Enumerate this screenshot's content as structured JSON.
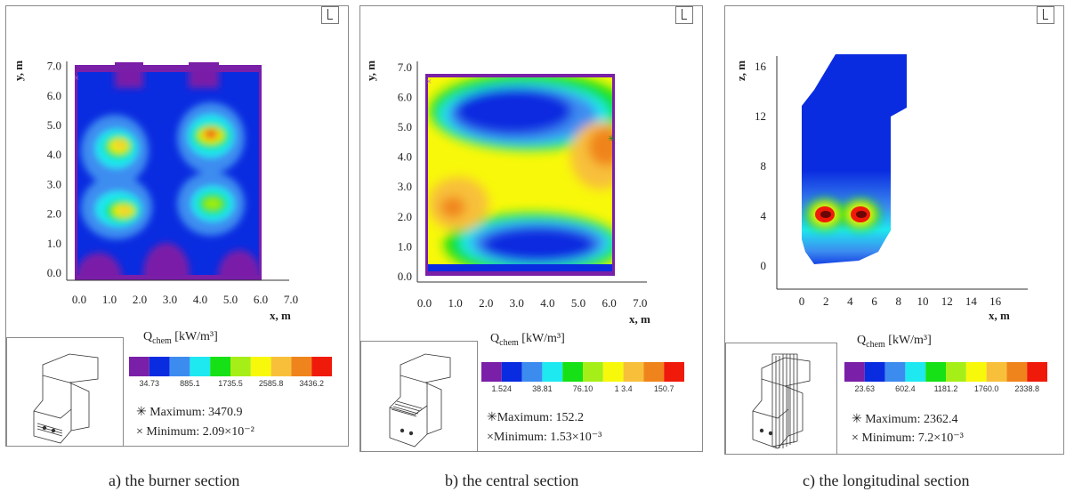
{
  "colors": [
    "#7a1fa8",
    "#0a2ce0",
    "#3c8cf0",
    "#1ee8f0",
    "#16e016",
    "#a6ee18",
    "#f8f80a",
    "#f8c03a",
    "#f0841c",
    "#f01a0a"
  ],
  "panels": [
    {
      "caption": "a) the burner section",
      "xlabel": "x, m",
      "ylabel": "y, m",
      "x_ticks": [
        "0.0",
        "1.0",
        "2.0",
        "3.0",
        "4.0",
        "5.0",
        "6.0",
        "7.0"
      ],
      "y_ticks": [
        "0.0",
        "1.0",
        "2.0",
        "3.0",
        "4.0",
        "5.0",
        "6.0",
        "7.0"
      ],
      "qlabel_main": "Q",
      "qlabel_sub": "chem",
      "qlabel_unit": " [kW/m³]",
      "colorbar_labels": [
        "34.73",
        "885.1",
        "1735.5",
        "2585.8",
        "3436.2"
      ],
      "maximum": "Maximum: 3470.9",
      "minimum": "Minimum:  2.09×10⁻²"
    },
    {
      "caption": "b) the central section",
      "xlabel": "x, m",
      "ylabel": "y, m",
      "x_ticks": [
        "0.0",
        "1.0",
        "2.0",
        "3.0",
        "4.0",
        "5.0",
        "6.0",
        "7.0"
      ],
      "y_ticks": [
        "0.0",
        "1.0",
        "2.0",
        "3.0",
        "4.0",
        "5.0",
        "6.0",
        "7.0"
      ],
      "qlabel_main": "Q",
      "qlabel_sub": "chem",
      "qlabel_unit": " [kW/m³]",
      "colorbar_labels": [
        "1.524",
        "38.81",
        "76.10",
        "1 3.4",
        "150.7"
      ],
      "maximum": "Maximum: 152.2",
      "minimum": "Minimum:  1.53×10⁻³"
    },
    {
      "caption": "c) the longitudinal section",
      "xlabel": "x, m",
      "ylabel": "z, m",
      "x_ticks": [
        "0",
        "2",
        "4",
        "6",
        "8",
        "10",
        "12",
        "14",
        "16"
      ],
      "y_ticks": [
        "0",
        "4",
        "8",
        "12",
        "16"
      ],
      "qlabel_main": "Q",
      "qlabel_sub": "chem",
      "qlabel_unit": " [kW/m³]",
      "colorbar_labels": [
        "23.63",
        "602.4",
        "1181.2",
        "1760.0",
        "2338.8"
      ],
      "maximum": "Maximum: 2362.4",
      "minimum": "Minimum:  7.2×10⁻³"
    }
  ],
  "chart_data": [
    {
      "type": "heatmap",
      "title": "",
      "xlabel": "x, m",
      "ylabel": "y, m",
      "xlim": [
        0,
        7
      ],
      "ylim": [
        0,
        7
      ],
      "colorbar": {
        "label": "Qchem [kW/m3]",
        "ticks": [
          34.73,
          885.1,
          1735.5,
          2585.8,
          3436.2
        ]
      },
      "maximum": 3470.9,
      "minimum": 0.0209,
      "hotspots": [
        {
          "x": 1.4,
          "y": 4.2,
          "value": 2585.8
        },
        {
          "x": 4.5,
          "y": 4.6,
          "value": 3436.2
        },
        {
          "x": 1.4,
          "y": 2.0,
          "value": 2585.8
        },
        {
          "x": 4.4,
          "y": 2.2,
          "value": 1735.5
        }
      ]
    },
    {
      "type": "heatmap",
      "title": "",
      "xlabel": "x, m",
      "ylabel": "y, m",
      "xlim": [
        0,
        7
      ],
      "ylim": [
        0,
        7
      ],
      "colorbar": {
        "label": "Qchem [kW/m3]",
        "ticks": [
          1.524,
          38.81,
          76.1,
          113.4,
          150.7
        ]
      },
      "maximum": 152.2,
      "minimum": 0.00153
    },
    {
      "type": "heatmap",
      "title": "",
      "xlabel": "x, m",
      "ylabel": "z, m",
      "xlim": [
        0,
        16
      ],
      "ylim": [
        0,
        16
      ],
      "colorbar": {
        "label": "Qchem [kW/m3]",
        "ticks": [
          23.63,
          602.4,
          1181.2,
          1760.0,
          2338.8
        ]
      },
      "maximum": 2362.4,
      "minimum": 0.0072,
      "hotspots": [
        {
          "x": 1.8,
          "z": 3.8,
          "value": 2338.8
        },
        {
          "x": 4.5,
          "z": 3.8,
          "value": 2338.8
        }
      ]
    }
  ]
}
